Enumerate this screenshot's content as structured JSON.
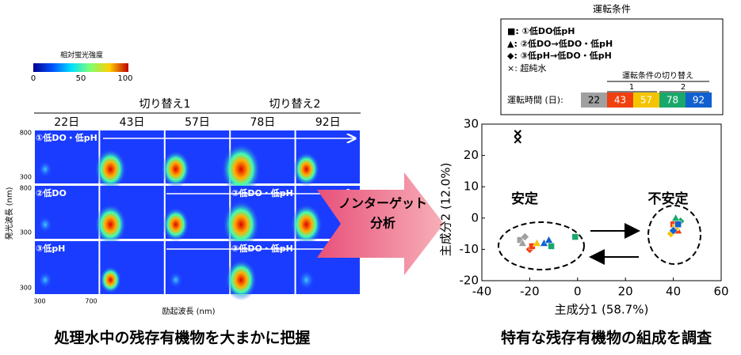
{
  "colorbar": {
    "label": "相対蛍光強度",
    "ticks": [
      0,
      50,
      100
    ]
  },
  "eem": {
    "groups": [
      "切り替え1",
      "切り替え2"
    ],
    "columns": [
      "22日",
      "43日",
      "57日",
      "78日",
      "92日"
    ],
    "rows": [
      "①低DO・低pH",
      "②低DO",
      "③低pH"
    ],
    "switched_labels": [
      "②低DO・低pH",
      "③低DO・低pH"
    ],
    "yticks": [
      800,
      300
    ],
    "xticks": [
      300,
      700
    ],
    "ylabel": "発光波長 (nm)",
    "xlabel": "励起波長 (nm)"
  },
  "arrow_label": [
    "ノンターゲット",
    "分析"
  ],
  "legend": {
    "title": "運転条件",
    "items": [
      "■: ①低DO低pH",
      "▲: ②低DO→低DO・低pH",
      "◆: ③低pH→低DO・低pH",
      "×: 超純水"
    ],
    "switch_title": "運転条件の切り替え",
    "switch_numbers": [
      1,
      2
    ],
    "time_label": "運転時間 (日):"
  },
  "captions": [
    "処理水中の残存有機物を大まかに把握",
    "特有な残存有機物の組成を調査"
  ],
  "chart_data": {
    "type": "scatter",
    "xlabel": "主成分1 (58.7%)",
    "ylabel": "主成分2 (12.0%)",
    "annotations": [
      "安定",
      "不安定"
    ],
    "xlim": [
      -40,
      60
    ],
    "xticks": [
      -40,
      -20,
      0,
      20,
      40,
      60
    ],
    "ylim": [
      -20,
      30
    ],
    "yticks": [
      -20,
      -10,
      0,
      10,
      20,
      30
    ],
    "series": [
      {
        "name": 22,
        "color": "#a0a0a0",
        "x": [
          -24,
          -23,
          -22
        ],
        "values": [
          -7,
          -8,
          -6
        ],
        "markers": [
          "square",
          "triangle",
          "diamond"
        ]
      },
      {
        "name": 43,
        "color": "#f04010",
        "x": [
          -20,
          -19,
          40,
          42
        ],
        "values": [
          -10,
          -9,
          -2,
          -4
        ],
        "markers": [
          "diamond",
          "square",
          "square",
          "triangle"
        ]
      },
      {
        "name": 57,
        "color": "#f5c400",
        "x": [
          -17,
          39,
          41
        ],
        "values": [
          -8,
          -5,
          -3
        ],
        "markers": [
          "triangle",
          "diamond",
          "square"
        ]
      },
      {
        "name": 78,
        "color": "#1aa86a",
        "x": [
          -11,
          -1,
          43,
          41
        ],
        "values": [
          -9,
          -6,
          -1,
          0
        ],
        "markers": [
          "square",
          "square",
          "diamond",
          "triangle"
        ]
      },
      {
        "name": 92,
        "color": "#1060d0",
        "x": [
          -14,
          -12,
          40,
          42
        ],
        "values": [
          -8,
          -7,
          -4,
          -2
        ],
        "markers": [
          "triangle",
          "triangle",
          "diamond",
          "square"
        ]
      },
      {
        "color": "#000",
        "x": [
          -25,
          -25
        ],
        "values": [
          25,
          27
        ],
        "markers": [
          "x",
          "x"
        ]
      }
    ]
  }
}
